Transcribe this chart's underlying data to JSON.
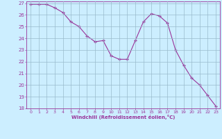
{
  "x": [
    0,
    1,
    2,
    3,
    4,
    5,
    6,
    7,
    8,
    9,
    10,
    11,
    12,
    13,
    14,
    15,
    16,
    17,
    18,
    19,
    20,
    21,
    22,
    23
  ],
  "y": [
    26.9,
    26.9,
    26.9,
    26.6,
    26.2,
    25.4,
    25.0,
    24.2,
    23.7,
    23.8,
    22.5,
    22.2,
    22.2,
    23.8,
    25.4,
    26.1,
    25.9,
    25.3,
    23.0,
    21.7,
    20.6,
    20.0,
    19.1,
    18.2
  ],
  "line_color": "#993399",
  "marker": "+",
  "marker_size": 3.5,
  "marker_linewidth": 1.0,
  "bg_color": "#cceeff",
  "grid_color": "#99bbcc",
  "xlabel": "Windchill (Refroidissement éolien,°C)",
  "xlabel_color": "#993399",
  "tick_color": "#993399",
  "ylim": [
    18,
    27
  ],
  "xlim": [
    -0.5,
    23.5
  ],
  "yticks": [
    18,
    19,
    20,
    21,
    22,
    23,
    24,
    25,
    26,
    27
  ],
  "xticks": [
    0,
    1,
    2,
    3,
    4,
    5,
    6,
    7,
    8,
    9,
    10,
    11,
    12,
    13,
    14,
    15,
    16,
    17,
    18,
    19,
    20,
    21,
    22,
    23
  ],
  "linewidth": 0.8
}
